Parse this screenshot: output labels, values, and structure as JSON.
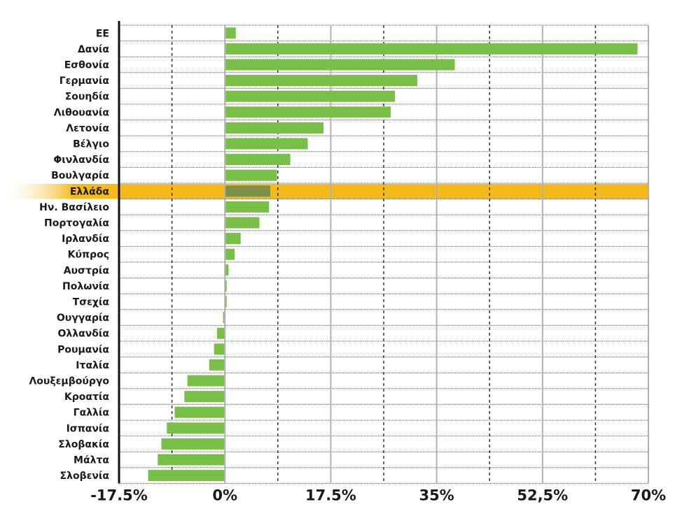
{
  "chart_data": {
    "type": "bar",
    "orientation": "horizontal",
    "title": "",
    "xlabel": "",
    "ylabel": "",
    "categories": [
      "ΕΕ",
      "Δανία",
      "Εσθονία",
      "Γερμανία",
      "Σουηδία",
      "Λιθουανία",
      "Λετονία",
      "Βέλγιο",
      "Φινλανδία",
      "Βουλγαρία",
      "Ελλάδα",
      "Ην. Βασίλειο",
      "Πορτογαλία",
      "Ιρλανδία",
      "Κύπρος",
      "Αυστρία",
      "Πολωνία",
      "Τσεχία",
      "Ουγγαρία",
      "Ολλανδία",
      "Ρουμανία",
      "Ιταλία",
      "Λουξεμβούργο",
      "Κροατία",
      "Γαλλία",
      "Ισπανία",
      "Σλοβακία",
      "Μάλτα",
      "Σλοβενία"
    ],
    "values": [
      1.8,
      68.2,
      38.0,
      31.8,
      28.1,
      27.4,
      16.3,
      13.7,
      10.8,
      8.6,
      7.5,
      7.3,
      5.7,
      2.6,
      1.6,
      0.6,
      0.3,
      0.3,
      -0.3,
      -1.3,
      -1.8,
      -2.6,
      -6.2,
      -6.7,
      -8.3,
      -9.6,
      -10.5,
      -11.1,
      -12.7
    ],
    "highlight": "Ελλάδα",
    "xlim": [
      -17.5,
      70
    ],
    "x_ticks": [
      -17.5,
      0,
      17.5,
      35,
      52.5,
      70
    ],
    "x_tick_labels": [
      "-17.5%",
      "0%",
      "17.5%",
      "35%",
      "52,5%",
      "70%"
    ],
    "grid": true,
    "colors": {
      "bar": "#77bf47",
      "bar_highlight": "#7c9148",
      "highlight_band": "#f3ba1a",
      "highlight_fade": "#fff3c8",
      "major_grid": "#b0b0b0",
      "minor_grid": "#333333",
      "row_rule": "#555555",
      "axis": "#111111"
    }
  }
}
